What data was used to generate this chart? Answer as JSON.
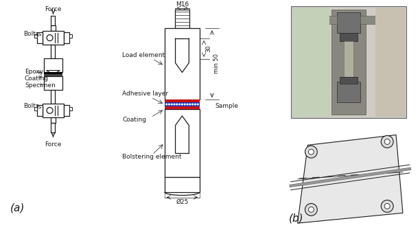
{
  "background_color": "#ffffff",
  "label_a": "(a)",
  "label_b": "(b)",
  "colors": {
    "line": "#1a1a1a",
    "blue_strip": "#1133bb",
    "red_strip": "#cc1111",
    "bg": "#ffffff",
    "photo_bg": "#aaaaaa",
    "sketch_line": "#333333"
  },
  "font_sizes": {
    "label_ab": 11,
    "small": 6.5,
    "tiny": 6.0
  },
  "left_labels": {
    "force_top": "Force",
    "force_bottom": "Force",
    "bolts_top": "Bolts",
    "epoxy": "Epoxy",
    "coating": "Coating",
    "specimen": "Specimen",
    "bolts_bottom": "Bolts"
  },
  "center_labels": {
    "M16": "M16",
    "load_element": "Load element",
    "adhesive_layer": "Adhesive layer",
    "coating": "Coating",
    "bolstering": "Bolstering element",
    "sample": "Sample",
    "phi25": "Ø25",
    "dim30": "30",
    "dimmin50": "min 50"
  }
}
